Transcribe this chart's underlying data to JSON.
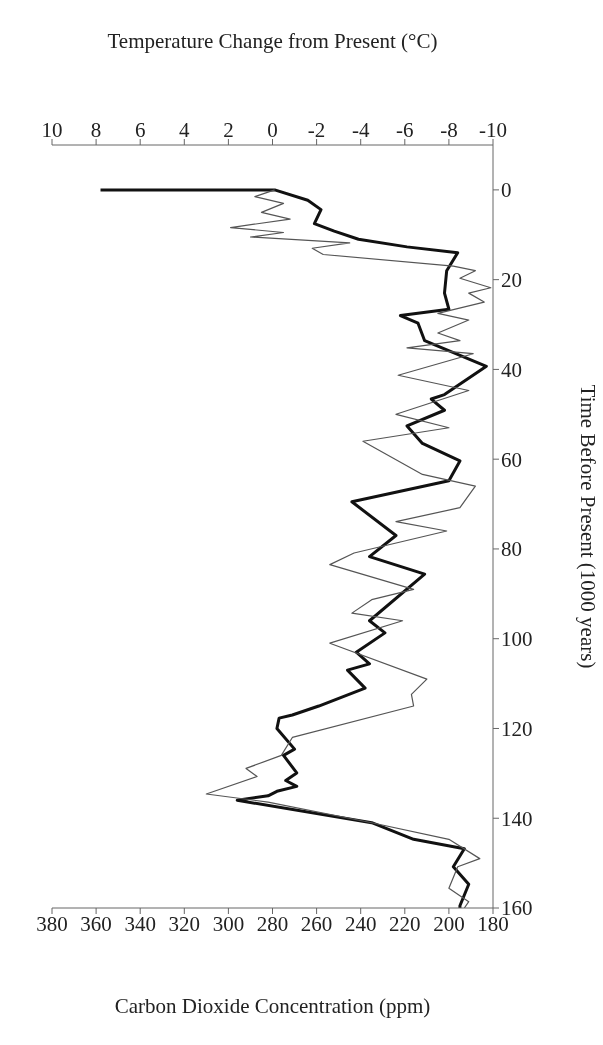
{
  "chart_data": {
    "type": "line",
    "orientation": "horizontal",
    "xlabel": "Carbon Dioxide Concentration (ppm)",
    "x2label": "Temperature Change from Present (°C)",
    "ylabel": "Time Before Present (1000 years)",
    "xlim": [
      380,
      180
    ],
    "xticks": [
      380,
      360,
      340,
      320,
      300,
      280,
      260,
      240,
      220,
      200,
      180
    ],
    "x2lim": [
      10,
      -10
    ],
    "x2ticks": [
      10,
      8,
      6,
      4,
      2,
      0,
      -2,
      -4,
      -6,
      -8,
      -10
    ],
    "ylim": [
      160,
      -10
    ],
    "yticks": [
      0,
      20,
      40,
      60,
      80,
      100,
      120,
      140,
      160
    ],
    "grid": false,
    "legend": false,
    "marker": "none",
    "line_style": "solid",
    "series": [
      {
        "color": "#111111",
        "x": [
          0,
          0,
          2.3,
          4.4,
          7.5,
          9.2,
          11,
          12.7,
          14,
          18,
          23,
          26.6,
          28,
          29.7,
          33.6,
          39.3,
          45.6,
          46.6,
          49.1,
          52.6,
          56.5,
          60.4,
          64.8,
          69.5,
          77,
          81.7,
          85.6,
          96,
          98.7,
          103,
          105.6,
          107,
          110,
          111,
          115,
          117,
          117.7,
          120,
          124.6,
          126,
          129.9,
          131.6,
          132.9,
          134,
          135,
          136,
          141,
          144.7,
          146.8,
          150.8,
          154.7,
          159.5,
          160
        ],
        "values": [
          358,
          279,
          264,
          258,
          261,
          252,
          241,
          219,
          196,
          201,
          202,
          200,
          222,
          214,
          211,
          183,
          202,
          208,
          202,
          219,
          212,
          195,
          200,
          244,
          224,
          236,
          211,
          236,
          229,
          242,
          236,
          246,
          240,
          238,
          259,
          271,
          277,
          278,
          270,
          275,
          269,
          274,
          269,
          278,
          282,
          296,
          235,
          216,
          193,
          198,
          191,
          195,
          195
        ]
      },
      {
        "color": "#555555",
        "axis": "x2",
        "x": [
          0,
          1.5,
          3,
          5,
          6.5,
          8.4,
          9.5,
          10.5,
          11.8,
          13,
          14.4,
          17,
          18,
          19.7,
          21.8,
          23,
          25,
          27.5,
          29,
          31.9,
          33.6,
          35.2,
          36.5,
          41.3,
          44.7,
          50,
          53,
          56,
          63.4,
          66,
          70.8,
          73.9,
          76,
          80.9,
          83.5,
          89,
          91.3,
          94.3,
          96,
          101,
          109,
          112.4,
          115,
          122,
          126,
          128.9,
          130.7,
          134.6,
          136.4,
          141,
          144.7,
          149,
          150.8,
          155.6,
          158.6,
          160
        ],
        "values": [
          -0.1,
          0.8,
          -0.5,
          0.5,
          -0.8,
          1.9,
          -0.5,
          1.0,
          -3.5,
          -1.8,
          -2.3,
          -8.2,
          -9.2,
          -8.5,
          -9.9,
          -8.9,
          -9.6,
          -7.5,
          -8.9,
          -7.5,
          -8.5,
          -6.1,
          -9.1,
          -5.7,
          -8.9,
          -5.6,
          -8.0,
          -4.1,
          -6.8,
          -9.2,
          -8.5,
          -5.6,
          -7.9,
          -3.7,
          -2.6,
          -6.4,
          -4.5,
          -3.6,
          -5.9,
          -2.6,
          -7.0,
          -6.3,
          -6.4,
          -0.9,
          -0.4,
          1.2,
          0.7,
          3.0,
          0.2,
          -4.5,
          -8.0,
          -9.4,
          -8.4,
          -8.0,
          -8.9,
          -8.7
        ]
      }
    ]
  }
}
